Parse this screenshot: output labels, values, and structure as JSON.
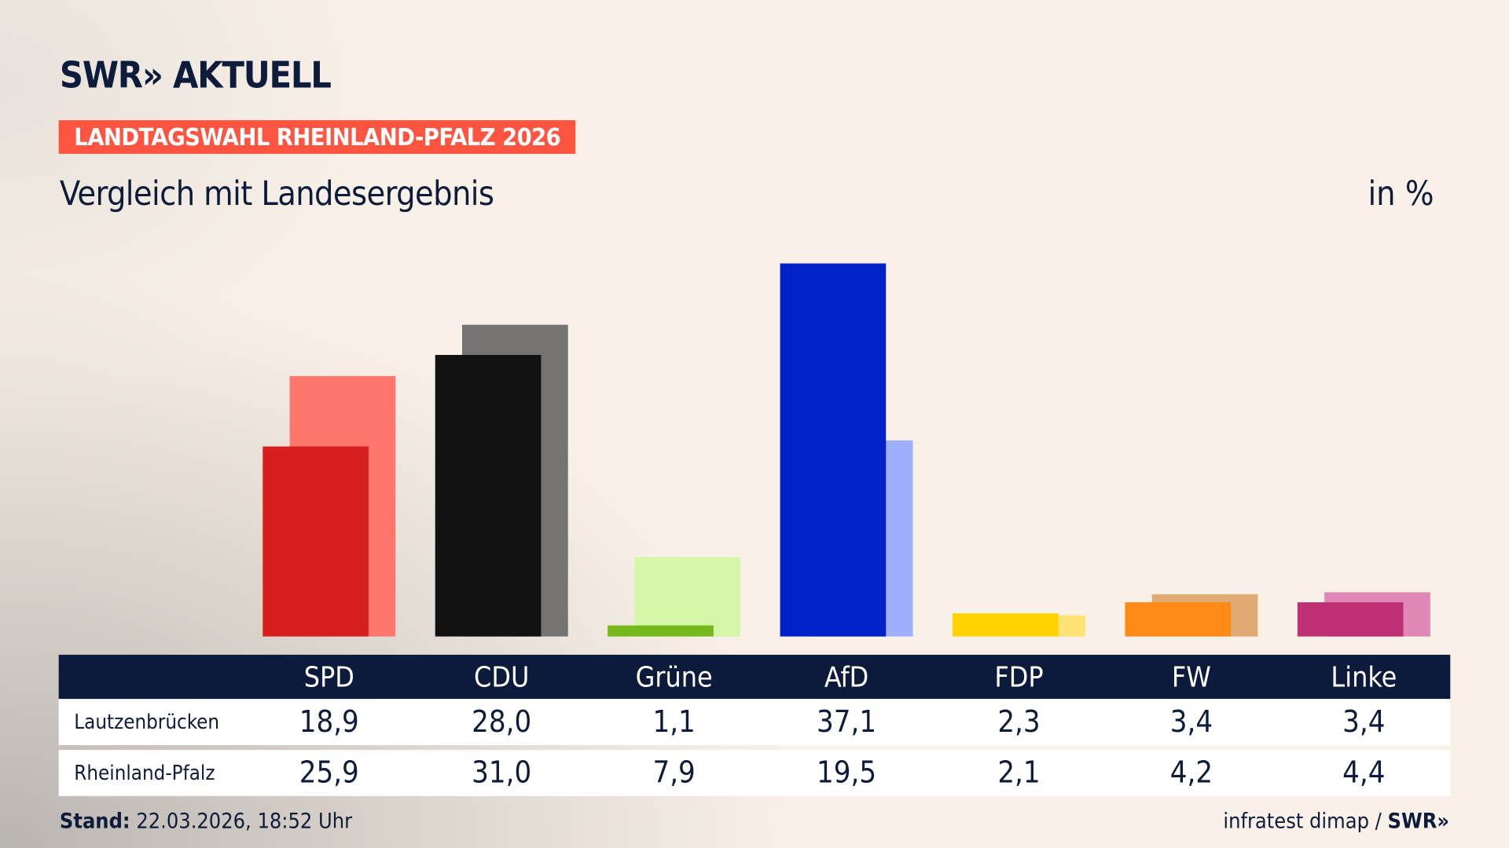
{
  "logo": "SWR» AKTUELL",
  "badge": "LANDTAGSWAHL RHEINLAND-PFALZ 2026",
  "subtitle": "Vergleich mit Landesergebnis",
  "unit": "in %",
  "footer": {
    "stand_label": "Stand:",
    "stand_value": "22.03.2026, 18:52 Uhr",
    "source": "infratest dimap /",
    "source_logo": "SWR»"
  },
  "chart_data": {
    "type": "bar",
    "title": "Vergleich mit Landesergebnis",
    "ylabel": "in %",
    "ylim": [
      0,
      37.1
    ],
    "grid": false,
    "categories": [
      "SPD",
      "CDU",
      "Grüne",
      "AfD",
      "FDP",
      "FW",
      "Linke"
    ],
    "series": [
      {
        "name": "Lautzenbrücken",
        "values": [
          18.9,
          28.0,
          1.1,
          37.1,
          2.3,
          3.4,
          3.4
        ],
        "labels": [
          "18,9",
          "28,0",
          "1,1",
          "37,1",
          "2,3",
          "3,4",
          "3,4"
        ],
        "colors": [
          "#d81f1f",
          "#121212",
          "#76b91e",
          "#0021c8",
          "#ffd200",
          "#ff8a17",
          "#be2f73"
        ]
      },
      {
        "name": "Rheinland-Pfalz",
        "values": [
          25.9,
          31.0,
          7.9,
          19.5,
          2.1,
          4.2,
          4.4
        ],
        "labels": [
          "25,9",
          "31,0",
          "7,9",
          "19,5",
          "2,1",
          "4,2",
          "4,4"
        ],
        "colors": [
          "#ff766d",
          "#747372",
          "#d5f7a8",
          "#a0aefe",
          "#ffe475",
          "#dfaa73",
          "#df88b5"
        ]
      }
    ]
  }
}
